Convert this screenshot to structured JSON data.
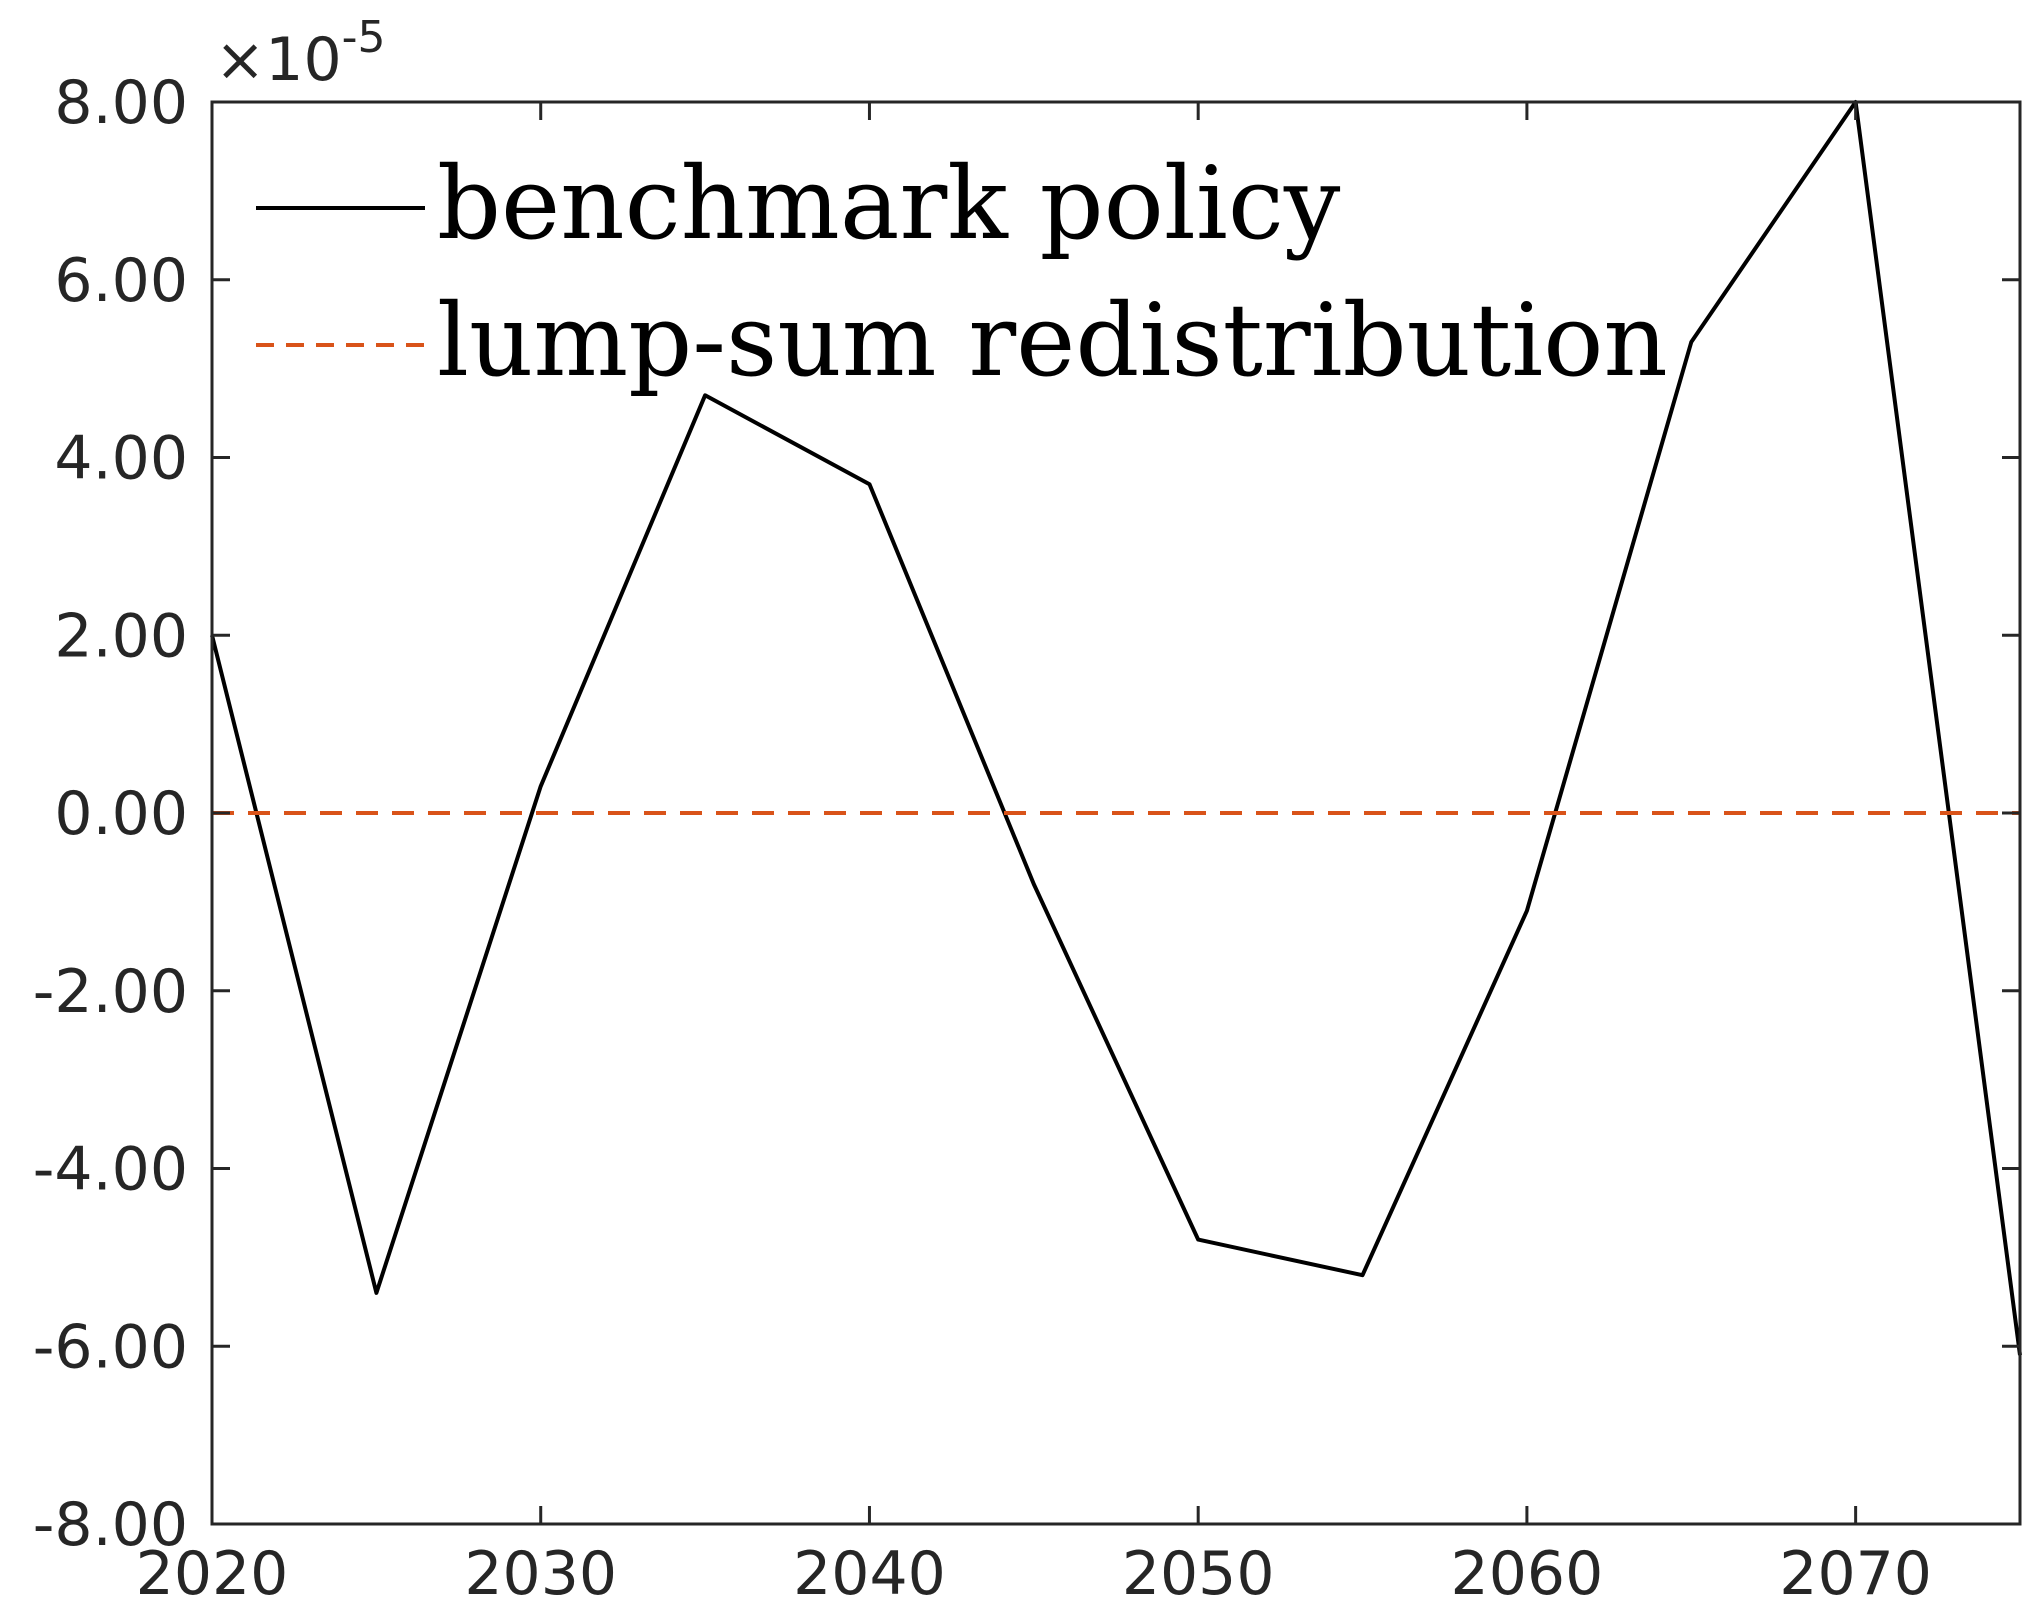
{
  "chart_data": {
    "type": "line",
    "title": "",
    "xlabel": "",
    "ylabel": "",
    "xlim": [
      2020,
      2075
    ],
    "ylim": [
      -8,
      8
    ],
    "y_exponent": {
      "times": "×",
      "base": "10",
      "power": "-5"
    },
    "x_ticks": [
      2020,
      2030,
      2040,
      2050,
      2060,
      2070
    ],
    "x_tick_labels": [
      "2020",
      "2030",
      "2040",
      "2050",
      "2060",
      "2070"
    ],
    "y_ticks": [
      8,
      6,
      4,
      2,
      0,
      -2,
      -4,
      -6,
      -8
    ],
    "y_tick_labels": [
      "8.00",
      "6.00",
      "4.00",
      "2.00",
      "0.00",
      "-2.00",
      "-4.00",
      "-6.00",
      "-8.00"
    ],
    "grid": false,
    "legend_position": "top-left",
    "series": [
      {
        "name": "benchmark policy",
        "color": "#000000",
        "style": "solid",
        "x": [
          2020,
          2025,
          2030,
          2035,
          2040,
          2045,
          2050,
          2055,
          2060,
          2065,
          2070,
          2075
        ],
        "y": [
          2.0,
          -5.4,
          0.3,
          4.7,
          3.7,
          -0.8,
          -4.8,
          -5.2,
          -1.1,
          5.3,
          8.0,
          -6.1
        ]
      },
      {
        "name": "lump-sum redistribution",
        "color": "#d95319",
        "style": "dashed",
        "x": [
          2020,
          2075
        ],
        "y": [
          0,
          0
        ]
      }
    ]
  }
}
